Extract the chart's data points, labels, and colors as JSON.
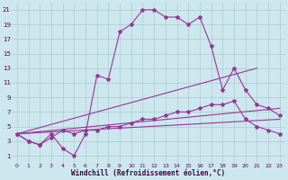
{
  "xlabel": "Windchill (Refroidissement éolien,°C)",
  "bg_color": "#cce8ee",
  "grid_color": "#aacccc",
  "line_color": "#993399",
  "xlim": [
    -0.5,
    23.5
  ],
  "ylim": [
    0,
    22
  ],
  "xticks": [
    0,
    1,
    2,
    3,
    4,
    5,
    6,
    7,
    8,
    9,
    10,
    11,
    12,
    13,
    14,
    15,
    16,
    17,
    18,
    19,
    20,
    21,
    22,
    23
  ],
  "yticks": [
    1,
    3,
    5,
    7,
    9,
    11,
    13,
    15,
    17,
    19,
    21
  ],
  "lines": [
    {
      "x": [
        0,
        1,
        2,
        3,
        4,
        5,
        6,
        7,
        8,
        9,
        10,
        11,
        12,
        13,
        14,
        15,
        16,
        17,
        18,
        19,
        20,
        21,
        22,
        23
      ],
      "y": [
        4,
        3,
        2.5,
        3.5,
        4.5,
        4,
        4.5,
        4.5,
        5,
        5,
        5.5,
        6,
        6,
        6.5,
        7,
        7,
        7.5,
        8,
        8,
        8.5,
        6,
        5,
        4.5,
        4
      ],
      "marker": true,
      "ls": "-"
    },
    {
      "x": [
        0,
        1,
        2,
        3,
        4,
        5,
        6,
        7,
        8,
        9,
        10,
        11,
        12,
        13,
        14,
        15,
        16,
        17,
        18,
        19,
        20,
        21,
        22,
        23
      ],
      "y": [
        4,
        3,
        2.5,
        4,
        2,
        1,
        4,
        12,
        11.5,
        18,
        19,
        21,
        21,
        20,
        20,
        19,
        20,
        16,
        10,
        13,
        10,
        8,
        7.5,
        6.5
      ],
      "marker": true,
      "ls": "-"
    },
    {
      "x": [
        0,
        23
      ],
      "y": [
        4,
        6
      ],
      "marker": false,
      "ls": "-"
    },
    {
      "x": [
        0,
        23
      ],
      "y": [
        4,
        7.5
      ],
      "marker": false,
      "ls": "-"
    },
    {
      "x": [
        0,
        21
      ],
      "y": [
        4,
        13
      ],
      "marker": false,
      "ls": "-"
    }
  ]
}
